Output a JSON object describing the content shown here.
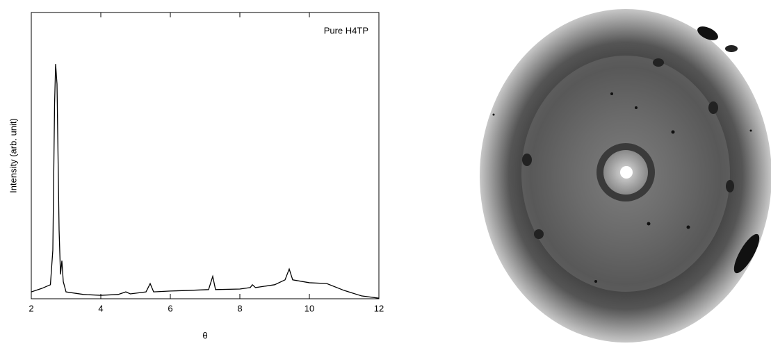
{
  "chart_data": {
    "type": "line",
    "annotation": "Pure H4TP",
    "xlabel": "θ",
    "ylabel": "Intensity (arb. unit)",
    "x": [
      2.0,
      2.3,
      2.55,
      2.62,
      2.67,
      2.7,
      2.74,
      2.8,
      2.84,
      2.88,
      2.92,
      3.0,
      3.5,
      4.0,
      4.5,
      4.72,
      4.85,
      5.3,
      5.42,
      5.52,
      6.0,
      6.5,
      7.1,
      7.22,
      7.3,
      8.0,
      8.3,
      8.36,
      8.45,
      9.0,
      9.3,
      9.42,
      9.52,
      10.0,
      10.5,
      11.0,
      11.5,
      12.0
    ],
    "values": [
      2.4,
      3.6,
      4.9,
      17,
      68,
      82,
      75,
      24,
      8.5,
      13.3,
      6,
      2.4,
      1.5,
      1.2,
      1.5,
      2.4,
      1.7,
      2.4,
      5.3,
      2.4,
      2.7,
      2.9,
      3.2,
      7.8,
      3.2,
      3.4,
      3.9,
      4.9,
      3.9,
      4.9,
      6.6,
      10.4,
      6.6,
      5.6,
      5.3,
      2.9,
      1,
      0.2
    ],
    "color": "#000000",
    "xlim": [
      2,
      12
    ],
    "xticks": [
      2,
      4,
      6,
      8,
      10,
      12
    ],
    "ylim": [
      0,
      100
    ]
  }
}
